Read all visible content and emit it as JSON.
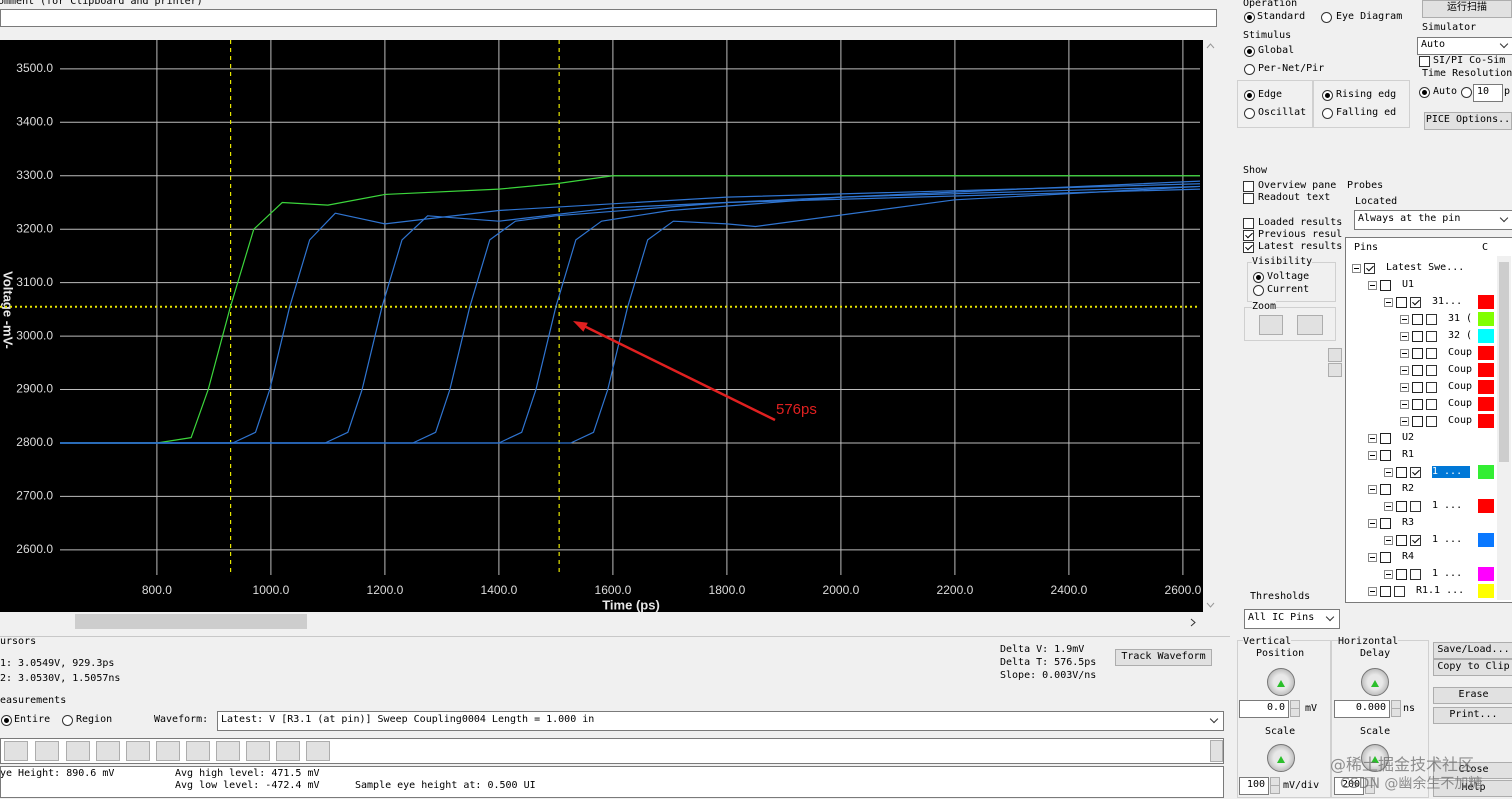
{
  "comment_label": "omment (for Clipboard and printer)",
  "chart_data": {
    "type": "line",
    "x_label": "Time (ps)",
    "y_label": "Voltage -mV-",
    "xlim": [
      630,
      2630
    ],
    "ylim": [
      2553,
      3554
    ],
    "xticks": [
      {
        "value": 800,
        "label": "800.0"
      },
      {
        "value": 1000,
        "label": "1000.0"
      },
      {
        "value": 1200,
        "label": "1200.0"
      },
      {
        "value": 1400,
        "label": "1400.0"
      },
      {
        "value": 1600,
        "label": "1600.0"
      },
      {
        "value": 1800,
        "label": "1800.0"
      },
      {
        "value": 2000,
        "label": "2000.0"
      },
      {
        "value": 2200,
        "label": "2200.0"
      },
      {
        "value": 2400,
        "label": "2400.0"
      },
      {
        "value": 2600,
        "label": "2600.0"
      }
    ],
    "yticks": [
      {
        "value": 2600,
        "label": "2600.0"
      },
      {
        "value": 2700,
        "label": "2700.0"
      },
      {
        "value": 2800,
        "label": "2800.0"
      },
      {
        "value": 2900,
        "label": "2900.0"
      },
      {
        "value": 3000,
        "label": "3000.0"
      },
      {
        "value": 3100,
        "label": "3100.0"
      },
      {
        "value": 3200,
        "label": "3200.0"
      },
      {
        "value": 3300,
        "label": "3300.0"
      },
      {
        "value": 3400,
        "label": "3400.0"
      },
      {
        "value": 3500,
        "label": "3500.0"
      }
    ],
    "grid": true,
    "background": "#000000",
    "cursors": [
      929.3,
      1505.7
    ],
    "cursor_color": "#e6e600",
    "threshold": 3054.9,
    "annotation": "576ps",
    "annotation_color": "#e02020",
    "series": [
      {
        "color": "#3cd63c",
        "x": [
          630,
          800,
          860,
          890,
          929,
          970,
          1020,
          1100,
          1200,
          1400,
          1500,
          1600,
          2630
        ],
        "values": [
          2800,
          2800,
          2810,
          2900,
          3055,
          3200,
          3250,
          3245,
          3265,
          3275,
          3285,
          3300,
          3300
        ]
      },
      {
        "color": "#2f74d0",
        "x": [
          630,
          933,
          973,
          998,
          1033,
          1068,
          1113,
          1200,
          1400,
          1800,
          2630
        ],
        "values": [
          2800,
          2800,
          2820,
          2900,
          3055,
          3180,
          3230,
          3210,
          3235,
          3260,
          3285
        ]
      },
      {
        "color": "#2f74d0",
        "x": [
          630,
          1095,
          1135,
          1160,
          1195,
          1230,
          1275,
          1400,
          1600,
          2000,
          2630
        ],
        "values": [
          2800,
          2800,
          2820,
          2900,
          3055,
          3180,
          3225,
          3215,
          3240,
          3260,
          3280
        ]
      },
      {
        "color": "#2f74d0",
        "x": [
          630,
          1249,
          1289,
          1314,
          1349,
          1384,
          1429,
          1500,
          1800,
          2630
        ],
        "values": [
          2800,
          2800,
          2820,
          2900,
          3055,
          3180,
          3215,
          3225,
          3250,
          3275
        ]
      },
      {
        "color": "#2f74d0",
        "x": [
          630,
          1400,
          1440,
          1465,
          1500,
          1535,
          1580,
          1700,
          2000,
          2630
        ],
        "values": [
          2800,
          2800,
          2820,
          2900,
          3055,
          3180,
          3215,
          3235,
          3260,
          3290
        ]
      },
      {
        "color": "#2f74d0",
        "x": [
          630,
          1526,
          1566,
          1591,
          1626,
          1661,
          1706,
          1800,
          1850,
          2200,
          2630
        ],
        "values": [
          2800,
          2800,
          2820,
          2900,
          3055,
          3180,
          3215,
          3210,
          3205,
          3255,
          3280
        ]
      }
    ]
  },
  "operation": {
    "title": "Operation",
    "options": [
      "Standard",
      "Eye Diagram"
    ],
    "selected": 0
  },
  "run_button": "运行扫描",
  "simulator": {
    "title": "Simulator",
    "value": "Auto",
    "cosim": "SI/PI Co-Sim",
    "time_resolution": "Time Resolution",
    "auto": "Auto",
    "step": "10",
    "unit": "p"
  },
  "stimulus": {
    "title": "Stimulus",
    "scope": [
      "Global",
      "Per-Net/Pir"
    ],
    "kind": [
      "Edge",
      "Oscillat"
    ],
    "edge": [
      "Rising edg",
      "Falling ed"
    ]
  },
  "spice_button": "PICE Options..",
  "show": {
    "title": "Show",
    "items": [
      {
        "label": "Overview pane",
        "checked": false
      },
      {
        "label": "Readout text",
        "checked": false
      },
      {
        "label": "Loaded results",
        "checked": false
      },
      {
        "label": "Previous resul",
        "checked": true
      },
      {
        "label": "Latest results",
        "checked": true
      }
    ]
  },
  "probes": {
    "title": "Probes",
    "located": "Located",
    "value": "Always at the pin"
  },
  "visibility": {
    "title": "Visibility",
    "options": [
      "Voltage",
      "Current"
    ]
  },
  "zoom": "Zoom",
  "pins": {
    "header": "Pins",
    "column": "C",
    "rows": [
      {
        "label": "Latest Swe...",
        "level": 0,
        "checked": true
      },
      {
        "label": "U1",
        "level": 1
      },
      {
        "label": "31...",
        "level": 2,
        "checked": true,
        "color": "#ff0000"
      },
      {
        "label": "31 (",
        "level": 3,
        "checked": false,
        "color": "#80ff00"
      },
      {
        "label": "32 (",
        "level": 3,
        "checked": false,
        "color": "#00ffff"
      },
      {
        "label": "Coup",
        "level": 3,
        "checked": false,
        "color": "#ff0000"
      },
      {
        "label": "Coup",
        "level": 3,
        "checked": false,
        "color": "#ff0000"
      },
      {
        "label": "Coup",
        "level": 3,
        "checked": false,
        "color": "#ff0000"
      },
      {
        "label": "Coup",
        "level": 3,
        "checked": false,
        "color": "#ff0000"
      },
      {
        "label": "Coup",
        "level": 3,
        "checked": false,
        "color": "#ff0000"
      },
      {
        "label": "U2",
        "level": 1
      },
      {
        "label": "R1",
        "level": 1
      },
      {
        "label": "1 ...",
        "level": 2,
        "checked": true,
        "color": "#33ee33",
        "selected": true
      },
      {
        "label": "R2",
        "level": 1
      },
      {
        "label": "1 ...",
        "level": 2,
        "checked": false,
        "color": "#ff0000"
      },
      {
        "label": "R3",
        "level": 1
      },
      {
        "label": "1 ...",
        "level": 2,
        "checked": true,
        "color": "#0a78ff"
      },
      {
        "label": "R4",
        "level": 1
      },
      {
        "label": "1 ...",
        "level": 2,
        "checked": false,
        "color": "#ff00ff"
      },
      {
        "label": "R1.1 ...",
        "level": 1,
        "checked": false,
        "color": "#ffff00"
      }
    ]
  },
  "thresholds": {
    "title": "Thresholds",
    "value": "All IC Pins"
  },
  "cursors": {
    "title": "ursors",
    "c1": "1: 3.0549V, 929.3ps",
    "c2": "2: 3.0530V, 1.5057ns",
    "delta_v": "Delta V: 1.9mV",
    "delta_t": "Delta T: 576.5ps",
    "slope": "Slope: 0.003V/ns",
    "track": "Track Waveform"
  },
  "measurements": {
    "title": "easurements",
    "range": [
      "Entire",
      "Region"
    ],
    "waveform_label": "Waveform:",
    "waveform": "Latest: V [R3.1 (at pin)] Sweep Coupling0004 Length = 1.000 in",
    "eye_height": "ye Height: 890.6 mV",
    "avg_high": "Avg high level: 471.5 mV",
    "avg_low": "Avg low level: -472.4 mV",
    "sample": "Sample eye height at: 0.500 UI"
  },
  "vertical": {
    "title1": "Vertical",
    "title2": "Position",
    "position": "0.0",
    "unit": "mV",
    "scale": "Scale",
    "scale_value": "100",
    "scale_unit": "mV/div"
  },
  "horizontal": {
    "title1": "Horizontal",
    "title2": "Delay",
    "delay": "0.000",
    "unit": "ns",
    "scale": "Scale",
    "scale_value": "200"
  },
  "buttons": [
    "Save/Load...",
    "Copy to Clip",
    "Erase",
    "Print...",
    "Close",
    "Help"
  ],
  "watermark": [
    "@稀土掘金技术社区",
    "CSDN @幽余生不加糖"
  ]
}
